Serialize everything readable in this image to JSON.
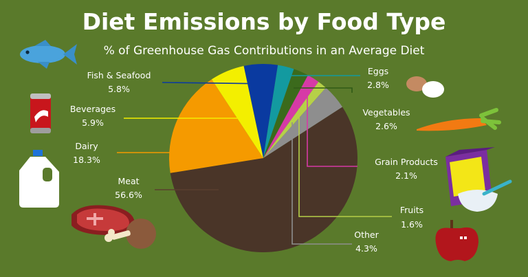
{
  "header": {
    "title": "Diet Emissions by Food Type",
    "subtitle": "% of Greenhouse Gas Contributions in an Average Diet"
  },
  "chart_data": {
    "type": "pie",
    "title": "Diet Emissions by Food Type",
    "subtitle": "% of Greenhouse Gas Contributions in an Average Diet",
    "slices": [
      {
        "label": "Fish & Seafood",
        "value": 5.8,
        "display": "5.8%",
        "color": "#0a3aa0"
      },
      {
        "label": "Eggs",
        "value": 2.8,
        "display": "2.8%",
        "color": "#139aa0"
      },
      {
        "label": "",
        "value": 2.6,
        "display": "",
        "color": "#3b6a1c"
      },
      {
        "label": "Grain Products",
        "value": 2.1,
        "display": "2.1%",
        "color": "#d63aa6"
      },
      {
        "label": "Fruits",
        "value": 1.6,
        "display": "1.6%",
        "color": "#b6d048"
      },
      {
        "label": "Other",
        "value": 4.3,
        "display": "4.3%",
        "color": "#8e8e8e"
      },
      {
        "label": "Meat",
        "value": 56.6,
        "display": "56.6%",
        "color": "#4a3528"
      },
      {
        "label": "Dairy",
        "value": 18.3,
        "display": "18.3%",
        "color": "#f59a00"
      },
      {
        "label": "Beverages",
        "value": 5.9,
        "display": "5.9%",
        "color": "#f3ef00"
      }
    ],
    "callouts": [
      {
        "label": "Fish & Seafood",
        "display": "5.8%",
        "color": "#0a3aa0"
      },
      {
        "label": "Beverages",
        "display": "5.9%",
        "color": "#f3ef00"
      },
      {
        "label": "Dairy",
        "display": "18.3%",
        "color": "#f59a00"
      },
      {
        "label": "Meat",
        "display": "56.6%",
        "color": "#4a3528"
      },
      {
        "label": "Eggs",
        "display": "2.8%",
        "color": "#139aa0"
      },
      {
        "label": "Vegetables",
        "display": "2.6%",
        "color": "#3b6a1c"
      },
      {
        "label": "Grain Products",
        "display": "2.1%",
        "color": "#d63aa6"
      },
      {
        "label": "Fruits",
        "display": "1.6%",
        "color": "#b6d048"
      },
      {
        "label": "Other",
        "display": "4.3%",
        "color": "#8e8e8e"
      }
    ]
  },
  "icons": [
    "fish-icon",
    "soda-can-icon",
    "milk-jug-icon",
    "steak-and-drumstick-icon",
    "eggs-icon",
    "carrot-icon",
    "cereal-box-and-bowl-icon",
    "apple-icon"
  ],
  "colors": {
    "background": "#5a7a2b",
    "text": "#ffffff"
  }
}
